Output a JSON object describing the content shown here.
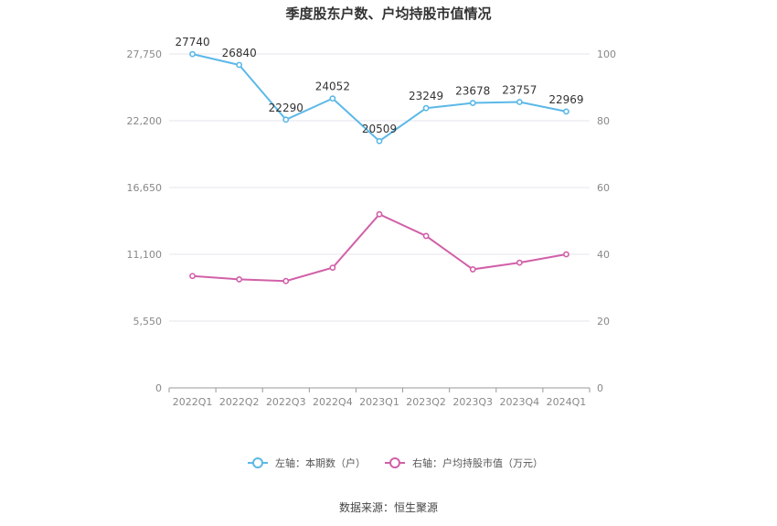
{
  "chart_data": {
    "type": "line",
    "title": "季度股东户数、户均持股市值情况",
    "categories": [
      "2022Q1",
      "2022Q2",
      "2022Q3",
      "2022Q4",
      "2023Q1",
      "2023Q2",
      "2023Q3",
      "2023Q4",
      "2024Q1"
    ],
    "left_axis": {
      "ticks": [
        "0",
        "5,550",
        "11,100",
        "16,650",
        "22,200",
        "27,750"
      ],
      "min": 0,
      "max": 27750
    },
    "right_axis": {
      "ticks": [
        "0",
        "20",
        "40",
        "60",
        "80",
        "100"
      ],
      "min": 0,
      "max": 100
    },
    "series": [
      {
        "name": "左轴：本期数（户）",
        "axis": "left",
        "color": "#5bb8e8",
        "values": [
          27740,
          26840,
          22290,
          24052,
          20509,
          23249,
          23678,
          23757,
          22969
        ],
        "labels": [
          "27740",
          "26840",
          "22290",
          "24052",
          "20509",
          "23249",
          "23678",
          "23757",
          "22969"
        ]
      },
      {
        "name": "右轴：户均持股市值（万元）",
        "axis": "right",
        "color": "#d160a8",
        "values": [
          33.5,
          32.5,
          32.0,
          36.0,
          52.0,
          45.5,
          35.5,
          37.5,
          40.0
        ]
      }
    ],
    "grid": true,
    "legend_position": "bottom-center",
    "source": "数据来源：恒生聚源"
  }
}
